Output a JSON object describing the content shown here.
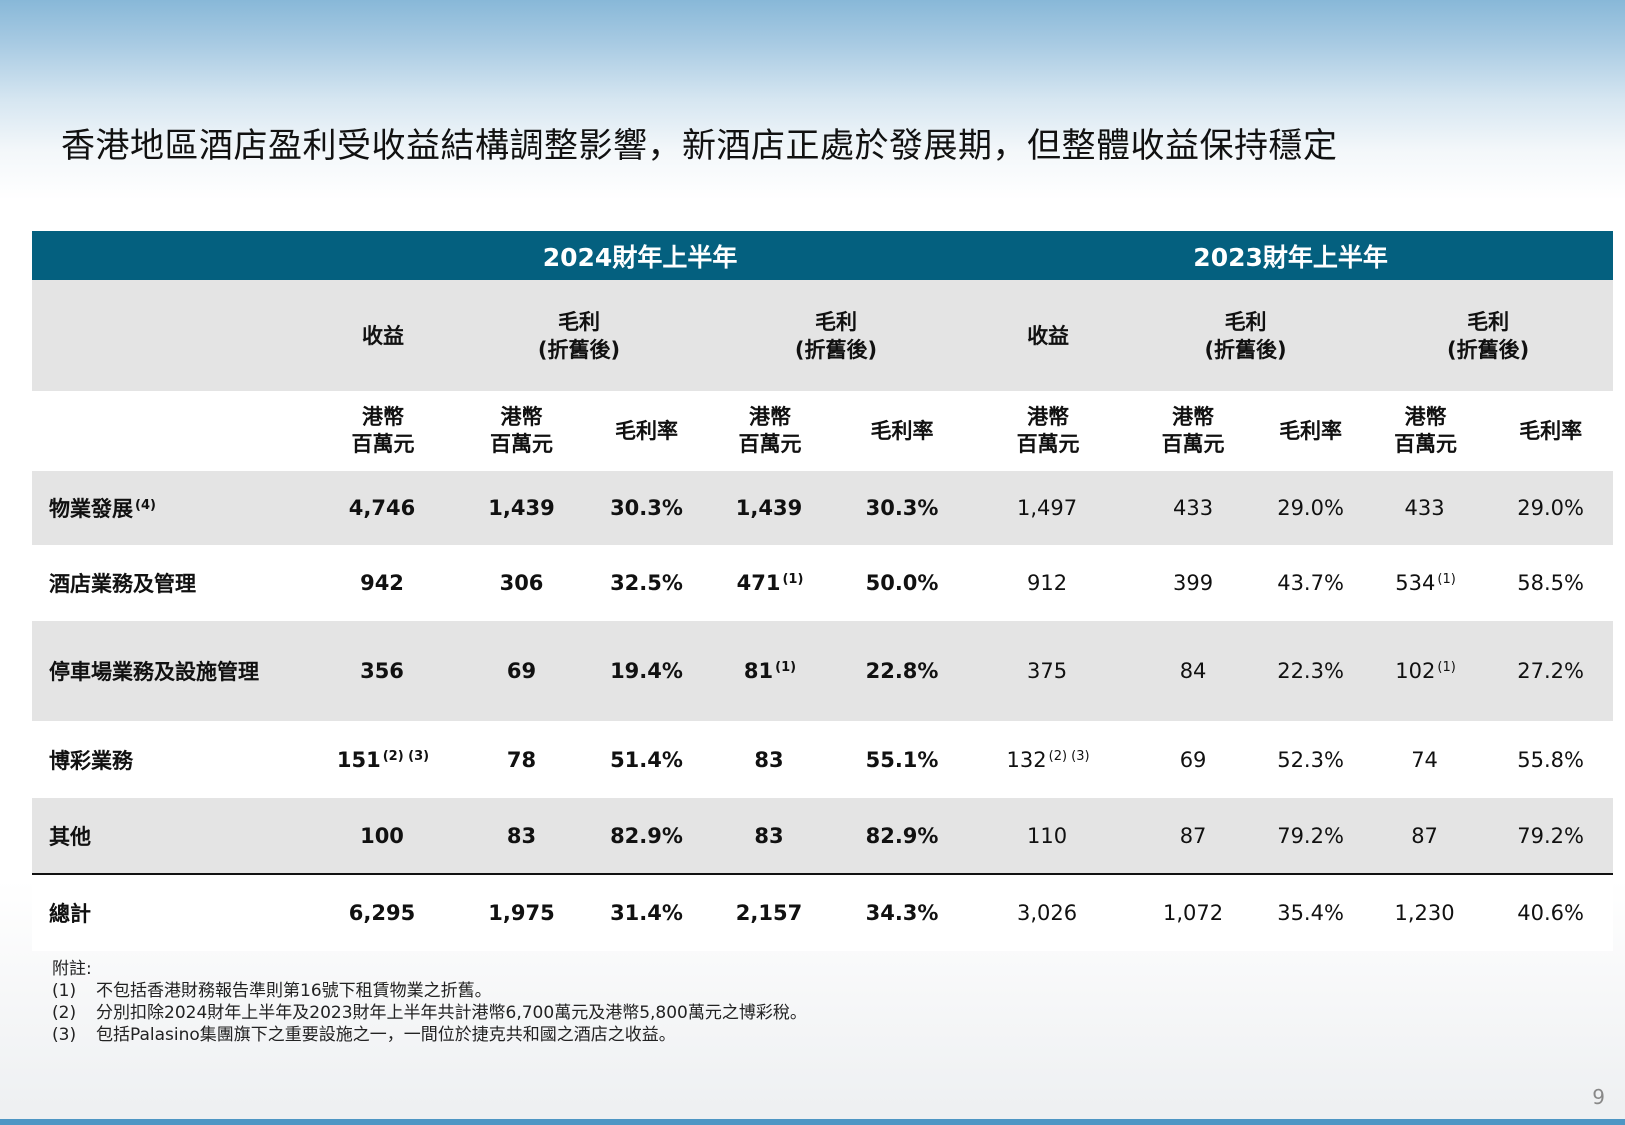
{
  "title": "香港地區酒店盈利受收益結構調整影響，新酒店正處於發展期，但整體收益保持穩定",
  "table": {
    "years": [
      "2024財年上半年",
      "2023財年上半年"
    ],
    "col_headers": {
      "revenue": "收益",
      "gross_profit_l1": "毛利",
      "gross_profit_l2": "(折舊後)"
    },
    "unit_headers": {
      "hkd_l1": "港幣",
      "hkd_l2": "百萬元",
      "margin": "毛利率"
    },
    "rows": [
      {
        "label": "物業發展",
        "label_sup": "(4)",
        "c1": "4,746",
        "c1_sup": "",
        "c2": "1,439",
        "c3": "30.3%",
        "c4": "1,439",
        "c4_sup": "",
        "c5": "30.3%",
        "c6": "1,497",
        "c6_sup": "",
        "c7": "433",
        "c8": "29.0%",
        "c9": "433",
        "c9_sup": "",
        "c10": "29.0%"
      },
      {
        "label": "酒店業務及管理",
        "label_sup": "",
        "c1": "942",
        "c1_sup": "",
        "c2": "306",
        "c3": "32.5%",
        "c4": "471",
        "c4_sup": "(1)",
        "c5": "50.0%",
        "c6": "912",
        "c6_sup": "",
        "c7": "399",
        "c8": "43.7%",
        "c9": "534",
        "c9_sup": "(1)",
        "c10": "58.5%"
      },
      {
        "label": "停車場業務及設施管理",
        "label_sup": "",
        "c1": "356",
        "c1_sup": "",
        "c2": "69",
        "c3": "19.4%",
        "c4": "81",
        "c4_sup": "(1)",
        "c5": "22.8%",
        "c6": "375",
        "c6_sup": "",
        "c7": "84",
        "c8": "22.3%",
        "c9": "102",
        "c9_sup": "(1)",
        "c10": "27.2%"
      },
      {
        "label": "博彩業務",
        "label_sup": "",
        "c1": "151",
        "c1_sup": "(2) (3)",
        "c2": "78",
        "c3": "51.4%",
        "c4": "83",
        "c4_sup": "",
        "c5": "55.1%",
        "c6": "132",
        "c6_sup": "(2) (3)",
        "c7": "69",
        "c8": "52.3%",
        "c9": "74",
        "c9_sup": "",
        "c10": "55.8%"
      },
      {
        "label": "其他",
        "label_sup": "",
        "c1": "100",
        "c1_sup": "",
        "c2": "83",
        "c3": "82.9%",
        "c4": "83",
        "c4_sup": "",
        "c5": "82.9%",
        "c6": "110",
        "c6_sup": "",
        "c7": "87",
        "c8": "79.2%",
        "c9": "87",
        "c9_sup": "",
        "c10": "79.2%"
      },
      {
        "label": "總計",
        "label_sup": "",
        "c1": "6,295",
        "c1_sup": "",
        "c2": "1,975",
        "c3": "31.4%",
        "c4": "2,157",
        "c4_sup": "",
        "c5": "34.3%",
        "c6": "3,026",
        "c6_sup": "",
        "c7": "1,072",
        "c8": "35.4%",
        "c9": "1,230",
        "c9_sup": "",
        "c10": "40.6%"
      }
    ]
  },
  "notes": {
    "heading": "附註:",
    "items": [
      {
        "num": "(1)",
        "text": "不包括香港財務報告準則第16號下租賃物業之折舊。"
      },
      {
        "num": "(2)",
        "text": "分別扣除2024財年上半年及2023財年上半年共計港幣6,700萬元及港幣5,800萬元之博彩稅。"
      },
      {
        "num": "(3)",
        "text": "包括Palasino集團旗下之重要設施之一，一間位於捷克共和國之酒店之收益。"
      }
    ]
  },
  "page_number": "9"
}
